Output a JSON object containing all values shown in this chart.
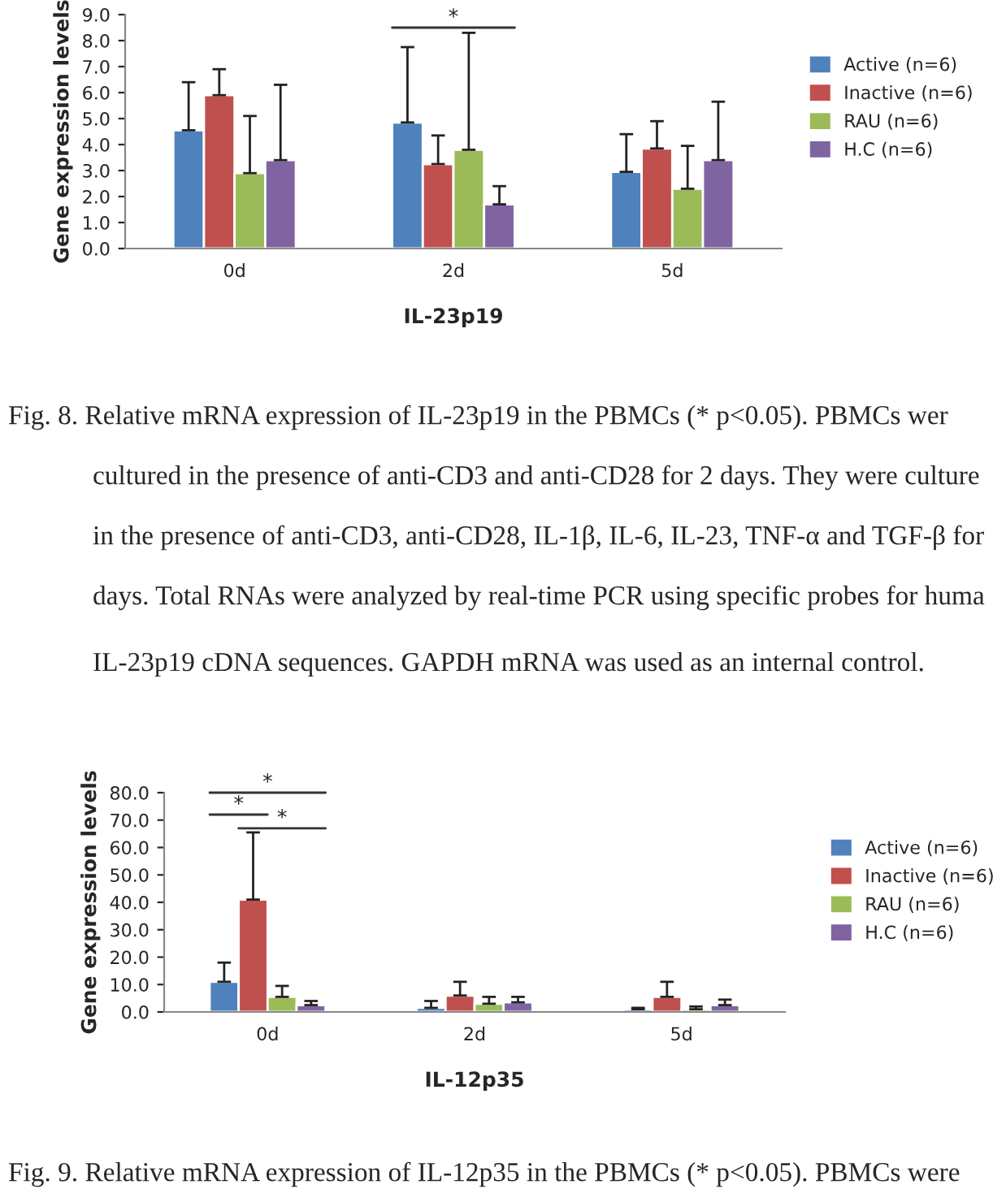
{
  "chart_data": [
    {
      "type": "bar",
      "xlabel": "IL-23p19",
      "ylabel": "Gene expression levels",
      "categories": [
        "0d",
        "2d",
        "5d"
      ],
      "series": [
        {
          "name": "Active (n=6)",
          "color": "#4f81bd",
          "values": [
            4.55,
            4.85,
            2.95
          ],
          "errors": [
            [
              4.55,
              6.4
            ],
            [
              4.85,
              7.75
            ],
            [
              2.95,
              4.4
            ]
          ]
        },
        {
          "name": "Inactive (n=6)",
          "color": "#c0504d",
          "values": [
            5.9,
            3.25,
            3.85
          ],
          "errors": [
            [
              5.9,
              6.9
            ],
            [
              3.25,
              4.35
            ],
            [
              3.85,
              4.9
            ]
          ]
        },
        {
          "name": "RAU (n=6)",
          "color": "#9bbb59",
          "values": [
            2.9,
            3.8,
            2.3
          ],
          "errors": [
            [
              2.9,
              5.1
            ],
            [
              3.8,
              8.3
            ],
            [
              2.3,
              3.95
            ]
          ]
        },
        {
          "name": "H.C (n=6)",
          "color": "#8064a2",
          "values": [
            3.4,
            1.7,
            3.4
          ],
          "errors": [
            [
              3.4,
              6.3
            ],
            [
              1.7,
              2.4
            ],
            [
              3.4,
              5.65
            ]
          ]
        }
      ],
      "ylim": [
        0,
        9
      ],
      "yticks": [
        {
          "value": 0,
          "label": "0.0"
        },
        {
          "value": 1,
          "label": "1.0"
        },
        {
          "value": 2,
          "label": "2.0"
        },
        {
          "value": 3,
          "label": "3.0"
        },
        {
          "value": 4,
          "label": "4.0"
        },
        {
          "value": 5,
          "label": "5.0"
        },
        {
          "value": 6,
          "label": "6.0"
        },
        {
          "value": 7,
          "label": "7.0"
        },
        {
          "value": 8,
          "label": "8.0"
        },
        {
          "value": 9,
          "label": "9.0"
        }
      ],
      "legend": "right",
      "annotations": [
        "*",
        "Fig. 8. Relative mRNA expression of IL-23p19 in the PBMCs (* p<0.05). PBMCs wer",
        "cultured in the presence of anti-CD3 and anti-CD28 for 2 days. They were culture",
        "in the presence of anti-CD3, anti-CD28, IL-1β, IL-6, IL-23, TNF-α and TGF-β for",
        "days. Total RNAs were analyzed by real-time PCR using specific probes for huma",
        "IL-23p19 cDNA sequences. GAPDH mRNA was used as an internal control."
      ]
    },
    {
      "type": "bar",
      "xlabel": "IL-12p35",
      "ylabel": "Gene expression levels",
      "categories": [
        "0d",
        "2d",
        "5d"
      ],
      "series": [
        {
          "name": "Active (n=6)",
          "color": "#4f81bd",
          "values": [
            11,
            1.5,
            1
          ],
          "errors": [
            [
              11,
              18
            ],
            [
              1.5,
              4
            ],
            [
              1,
              1.5
            ]
          ]
        },
        {
          "name": "Inactive (n=6)",
          "color": "#c0504d",
          "values": [
            41,
            6,
            5.5
          ],
          "errors": [
            [
              41,
              65.5
            ],
            [
              6,
              11
            ],
            [
              5.5,
              11
            ]
          ]
        },
        {
          "name": "RAU (n=6)",
          "color": "#9bbb59",
          "values": [
            5.5,
            3,
            1
          ],
          "errors": [
            [
              5.5,
              9.5
            ],
            [
              3,
              5.5
            ],
            [
              1,
              2
            ]
          ]
        },
        {
          "name": "H.C (n=6)",
          "color": "#8064a2",
          "values": [
            2.5,
            3.5,
            2.5
          ],
          "errors": [
            [
              2.5,
              4
            ],
            [
              3.5,
              5.5
            ],
            [
              2.5,
              4.5
            ]
          ]
        }
      ],
      "ylim": [
        0,
        80
      ],
      "yticks": [
        {
          "value": 0,
          "label": "0.0"
        },
        {
          "value": 10,
          "label": "10.0"
        },
        {
          "value": 20,
          "label": "20.0"
        },
        {
          "value": 30,
          "label": "30.0"
        },
        {
          "value": 40,
          "label": "40.0"
        },
        {
          "value": 50,
          "label": "50.0"
        },
        {
          "value": 60,
          "label": "60.0"
        },
        {
          "value": 70,
          "label": "70.0"
        },
        {
          "value": 80,
          "label": "80.0"
        }
      ],
      "legend": "right",
      "annotations": [
        "*",
        "*",
        "*",
        "Fig. 9. Relative mRNA expression of IL-12p35 in the PBMCs (* p<0.05). PBMCs were"
      ]
    }
  ]
}
